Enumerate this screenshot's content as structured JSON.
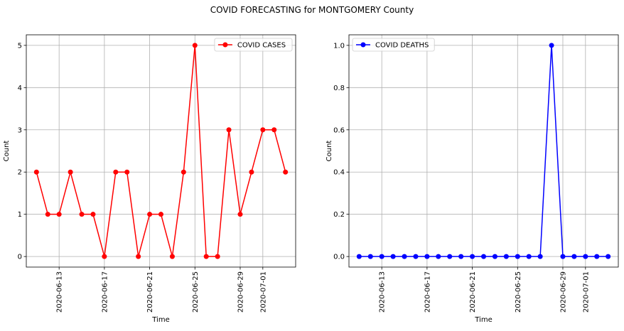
{
  "figure": {
    "title": "COVID FORECASTING for MONTGOMERY County"
  },
  "chart_data": [
    {
      "type": "line",
      "xlabel": "Time",
      "ylabel": "Count",
      "x": [
        "2020-06-11",
        "2020-06-12",
        "2020-06-13",
        "2020-06-14",
        "2020-06-15",
        "2020-06-16",
        "2020-06-17",
        "2020-06-18",
        "2020-06-19",
        "2020-06-20",
        "2020-06-21",
        "2020-06-22",
        "2020-06-23",
        "2020-06-24",
        "2020-06-25",
        "2020-06-26",
        "2020-06-27",
        "2020-06-28",
        "2020-06-29",
        "2020-06-30",
        "2020-07-01",
        "2020-07-02",
        "2020-07-03"
      ],
      "series": [
        {
          "name": "COVID CASES",
          "color": "#ff0000",
          "marker": "circle",
          "values": [
            2,
            1,
            1,
            2,
            1,
            1,
            0,
            2,
            2,
            0,
            1,
            1,
            0,
            2,
            5,
            0,
            0,
            3,
            1,
            2,
            3,
            3,
            2
          ]
        }
      ],
      "xticks": [
        "2020-06-13",
        "2020-06-17",
        "2020-06-21",
        "2020-06-25",
        "2020-06-29",
        "2020-07-01"
      ],
      "yticks": [
        "0",
        "1",
        "2",
        "3",
        "4",
        "5"
      ],
      "ylim": [
        -0.25,
        5.25
      ],
      "xlim": [
        "2020-06-10.1",
        "2020-07-03.9"
      ],
      "grid": true,
      "legend": "upper right"
    },
    {
      "type": "line",
      "xlabel": "Time",
      "ylabel": "Count",
      "x": [
        "2020-06-11",
        "2020-06-12",
        "2020-06-13",
        "2020-06-14",
        "2020-06-15",
        "2020-06-16",
        "2020-06-17",
        "2020-06-18",
        "2020-06-19",
        "2020-06-20",
        "2020-06-21",
        "2020-06-22",
        "2020-06-23",
        "2020-06-24",
        "2020-06-25",
        "2020-06-26",
        "2020-06-27",
        "2020-06-28",
        "2020-06-29",
        "2020-06-30",
        "2020-07-01",
        "2020-07-02",
        "2020-07-03"
      ],
      "series": [
        {
          "name": "COVID DEATHS",
          "color": "#0000ff",
          "marker": "circle",
          "values": [
            0,
            0,
            0,
            0,
            0,
            0,
            0,
            0,
            0,
            0,
            0,
            0,
            0,
            0,
            0,
            0,
            0,
            1,
            0,
            0,
            0,
            0,
            0
          ]
        }
      ],
      "xticks": [
        "2020-06-13",
        "2020-06-17",
        "2020-06-21",
        "2020-06-25",
        "2020-06-29",
        "2020-07-01"
      ],
      "yticks": [
        "0.0",
        "0.2",
        "0.4",
        "0.6",
        "0.8",
        "1.0"
      ],
      "ylim": [
        -0.05,
        1.05
      ],
      "xlim": [
        "2020-06-10.1",
        "2020-07-03.9"
      ],
      "grid": true,
      "legend": "upper left"
    }
  ]
}
